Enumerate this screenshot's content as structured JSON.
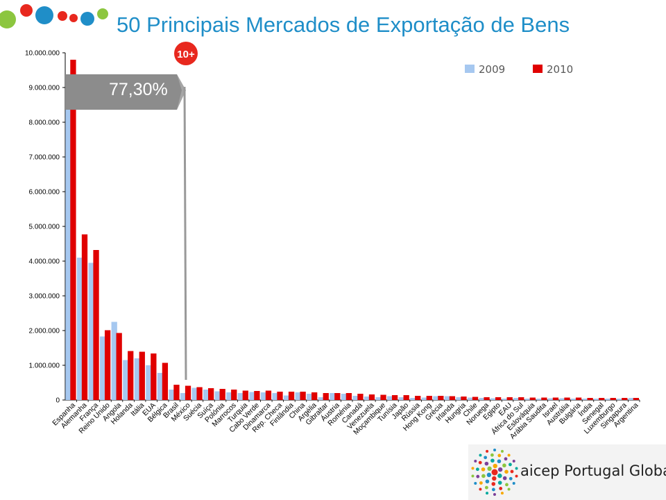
{
  "title": "50 Principais Mercados de Exportação de Bens",
  "badge": "10+",
  "share_label": "77,30%",
  "logo_text": "aicep Portugal Global",
  "colors": {
    "series_2009": "#a6c8f0",
    "series_2010": "#e00000",
    "title": "#1f8ec8",
    "badge": "#e8281e",
    "arrow": "#8c8c8c"
  },
  "chart_data": {
    "type": "bar",
    "title": "50 Principais Mercados de Exportação de Bens",
    "xlabel": "",
    "ylabel": "",
    "ylim": [
      0,
      10000000
    ],
    "yticks": [
      "0",
      "1.000.000",
      "2.000.000",
      "3.000.000",
      "4.000.000",
      "5.000.000",
      "6.000.000",
      "7.000.000",
      "8.000.000",
      "9.000.000",
      "10.000.000"
    ],
    "grid": false,
    "legend": "top-right",
    "categories": [
      "Espanha",
      "Alemanha",
      "França",
      "Reino Unido",
      "Angola",
      "Holanda",
      "Itália",
      "EUA",
      "Bélgica",
      "Brasil",
      "México",
      "Suécia",
      "Suíça",
      "Polónia",
      "Marrocos",
      "Turquia",
      "Cabo Verde",
      "Dinamarca",
      "Rep. Checa",
      "Finlândia",
      "China",
      "Argélia",
      "Gibraltar",
      "Áustria",
      "Roménia",
      "Canadá",
      "Venezuela",
      "Moçambique",
      "Tunísia",
      "Japão",
      "Rússia",
      "Hong Kong",
      "Grécia",
      "Irlanda",
      "Hungria",
      "Chile",
      "Noruega",
      "Egipto",
      "EAU",
      "África do Sul",
      "Eslováquia",
      "Arábia Saudita",
      "Israel",
      "Austrália",
      "Bulgária",
      "Índia",
      "Senegal",
      "Luxemburgo",
      "Singapura",
      "Argentina"
    ],
    "series": [
      {
        "name": "2009",
        "values": [
          8800000,
          4100000,
          3950000,
          1830000,
          2250000,
          1150000,
          1200000,
          1000000,
          780000,
          300000,
          200000,
          350000,
          300000,
          250000,
          220000,
          200000,
          230000,
          220000,
          200000,
          130000,
          220000,
          180000,
          80000,
          200000,
          180000,
          120000,
          100000,
          80000,
          110000,
          80000,
          60000,
          70000,
          110000,
          110000,
          80000,
          70000,
          60000,
          50000,
          40000,
          60000,
          40000,
          40000,
          50000,
          50000,
          40000,
          40000,
          40000,
          40000,
          40000,
          60000
        ]
      },
      {
        "name": "2010",
        "values": [
          9800000,
          4770000,
          4320000,
          2010000,
          1930000,
          1410000,
          1390000,
          1340000,
          1070000,
          440000,
          410000,
          370000,
          340000,
          320000,
          300000,
          270000,
          260000,
          270000,
          240000,
          240000,
          240000,
          220000,
          200000,
          200000,
          200000,
          180000,
          160000,
          150000,
          140000,
          140000,
          120000,
          120000,
          120000,
          110000,
          100000,
          90000,
          80000,
          80000,
          80000,
          80000,
          70000,
          70000,
          70000,
          70000,
          70000,
          60000,
          60000,
          60000,
          60000,
          60000
        ]
      }
    ]
  }
}
